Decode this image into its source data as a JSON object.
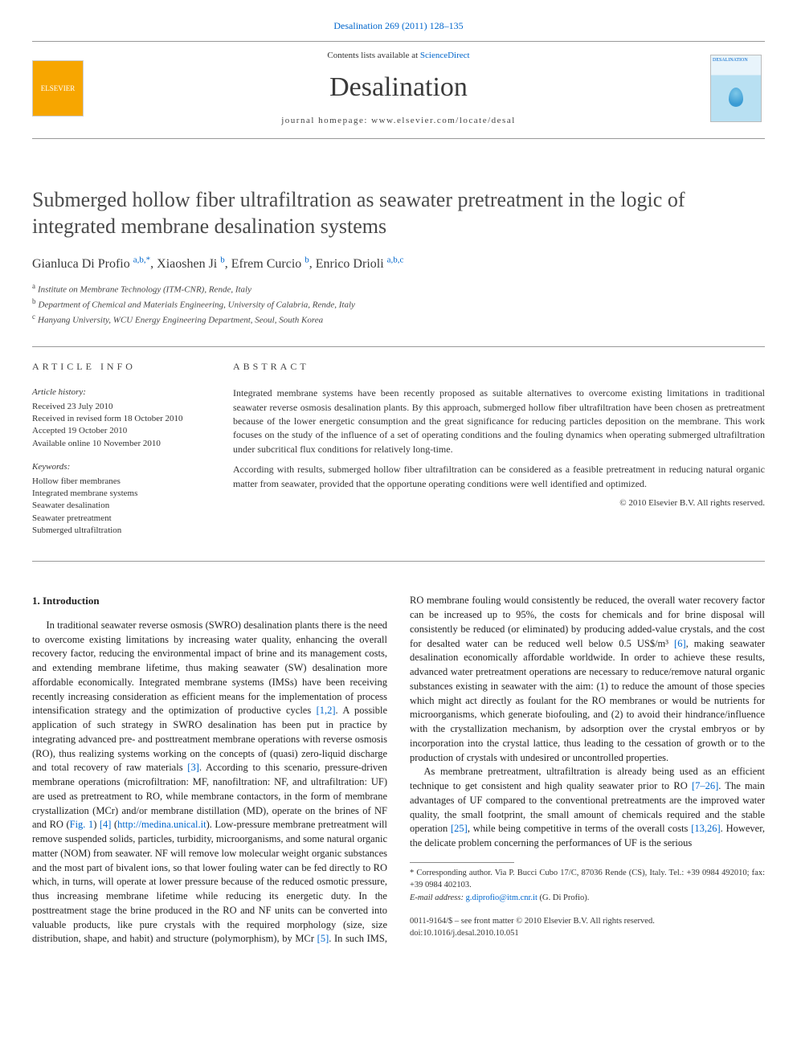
{
  "citation": "Desalination 269 (2011) 128–135",
  "header": {
    "contents_prefix": "Contents lists available at ",
    "contents_link": "ScienceDirect",
    "journal": "Desalination",
    "homepage_label": "journal homepage: ",
    "homepage_url": "www.elsevier.com/locate/desal",
    "publisher_logo_text": "ELSEVIER",
    "cover_label": "DESALINATION"
  },
  "title": "Submerged hollow fiber ultrafiltration as seawater pretreatment in the logic of integrated membrane desalination systems",
  "authors": [
    {
      "name": "Gianluca Di Profio",
      "marks": "a,b,*"
    },
    {
      "name": "Xiaoshen Ji",
      "marks": "b"
    },
    {
      "name": "Efrem Curcio",
      "marks": "b"
    },
    {
      "name": "Enrico Drioli",
      "marks": "a,b,c"
    }
  ],
  "affiliations": [
    {
      "mark": "a",
      "text": "Institute on Membrane Technology (ITM-CNR), Rende, Italy"
    },
    {
      "mark": "b",
      "text": "Department of Chemical and Materials Engineering, University of Calabria, Rende, Italy"
    },
    {
      "mark": "c",
      "text": "Hanyang University, WCU Energy Engineering Department, Seoul, South Korea"
    }
  ],
  "article_info": {
    "label": "ARTICLE INFO",
    "history_heading": "Article history:",
    "history": [
      "Received 23 July 2010",
      "Received in revised form 18 October 2010",
      "Accepted 19 October 2010",
      "Available online 10 November 2010"
    ],
    "keywords_heading": "Keywords:",
    "keywords": [
      "Hollow fiber membranes",
      "Integrated membrane systems",
      "Seawater desalination",
      "Seawater pretreatment",
      "Submerged ultrafiltration"
    ]
  },
  "abstract": {
    "label": "ABSTRACT",
    "paragraphs": [
      "Integrated membrane systems have been recently proposed as suitable alternatives to overcome existing limitations in traditional seawater reverse osmosis desalination plants. By this approach, submerged hollow fiber ultrafiltration have been chosen as pretreatment because of the lower energetic consumption and the great significance for reducing particles deposition on the membrane. This work focuses on the study of the influence of a set of operating conditions and the fouling dynamics when operating submerged ultrafiltration under subcritical flux conditions for relatively long-time.",
      "According with results, submerged hollow fiber ultrafiltration can be considered as a feasible pretreatment in reducing natural organic matter from seawater, provided that the opportune operating conditions were well identified and optimized."
    ],
    "copyright": "© 2010 Elsevier B.V. All rights reserved."
  },
  "body": {
    "heading": "1. Introduction",
    "p1_a": "In traditional seawater reverse osmosis (SWRO) desalination plants there is the need to overcome existing limitations by increasing water quality, enhancing the overall recovery factor, reducing the environmental impact of brine and its management costs, and extending membrane lifetime, thus making seawater (SW) desalination more affordable economically. Integrated membrane systems (IMSs) have been receiving recently increasing consideration as efficient means for the implementation of process intensification strategy and the optimization of productive cycles ",
    "ref12": "[1,2]",
    "p1_b": ". A possible application of such strategy in SWRO desalination has been put in practice by integrating advanced pre- and posttreatment membrane operations with reverse osmosis (RO), thus realizing systems working on the concepts of (quasi) zero-liquid discharge and total recovery of raw materials ",
    "ref3": "[3]",
    "p1_c": ". According to this scenario, pressure-driven membrane operations (microfiltration: MF, nanofiltration: NF, and ultrafiltration: UF) are used as pretreatment to RO, while membrane contactors, in the form of membrane crystallization (MCr) and/or membrane distillation (MD), operate on the brines of NF and RO (",
    "fig1": "Fig. 1",
    "p1_d": ") ",
    "ref4": "[4]",
    "p1_e": " (",
    "medina": "http://medina.unical.it",
    "p1_f": "). Low-pressure membrane pretreatment will remove suspended solids, particles, turbidity, microorganisms, and some natural organic matter (NOM) from seawater. NF will remove low molecular weight organic substances and the most part of bivalent ions, so that lower fouling ",
    "p2_a": "water can be fed directly to RO which, in turns, will operate at lower pressure because of the reduced osmotic pressure, thus increasing membrane lifetime while reducing its energetic duty. In the posttreatment stage the brine produced in the RO and NF units can be converted into valuable products, like pure crystals with the required morphology (size, size distribution, shape, and habit) and structure (polymorphism), by MCr ",
    "ref5": "[5]",
    "p2_b": ". In such IMS, RO membrane fouling would consistently be reduced, the overall water recovery factor can be increased up to 95%, the costs for chemicals and for brine disposal will consistently be reduced (or eliminated) by producing added-value crystals, and the cost for desalted water can be reduced well below 0.5 US$/m³ ",
    "ref6": "[6]",
    "p2_c": ", making seawater desalination economically affordable worldwide. In order to achieve these results, advanced water pretreatment operations are necessary to reduce/remove natural organic substances existing in seawater with the aim: (1) to reduce the amount of those species which might act directly as foulant for the RO membranes or would be nutrients for microorganisms, which generate biofouling, and (2) to avoid their hindrance/influence with the crystallization mechanism, by adsorption over the crystal embryos or by incorporation into the crystal lattice, thus leading to the cessation of growth or to the production of crystals with undesired or uncontrolled properties.",
    "p3_a": "As membrane pretreatment, ultrafiltration is already being used as an efficient technique to get consistent and high quality seawater prior to RO ",
    "ref726": "[7–26]",
    "p3_b": ". The main advantages of UF compared to the conventional pretreatments are the improved water quality, the small footprint, the small amount of chemicals required and the stable operation ",
    "ref25": "[25]",
    "p3_c": ", while being competitive in terms of the overall costs ",
    "ref1326": "[13,26]",
    "p3_d": ". However, the delicate problem concerning the performances of UF is the serious"
  },
  "footnotes": {
    "corr": "* Corresponding author. Via P. Bucci Cubo 17/C, 87036 Rende (CS), Italy. Tel.: +39 0984 492010; fax: +39 0984 402103.",
    "email_label": "E-mail address: ",
    "email": "g.diprofio@itm.cnr.it",
    "email_suffix": " (G. Di Profio)."
  },
  "bottom": {
    "issn": "0011-9164/$ – see front matter © 2010 Elsevier B.V. All rights reserved.",
    "doi": "doi:10.1016/j.desal.2010.10.051"
  },
  "colors": {
    "link": "#0066cc",
    "rule": "#999999",
    "text": "#2a2a2a",
    "background": "#ffffff"
  }
}
